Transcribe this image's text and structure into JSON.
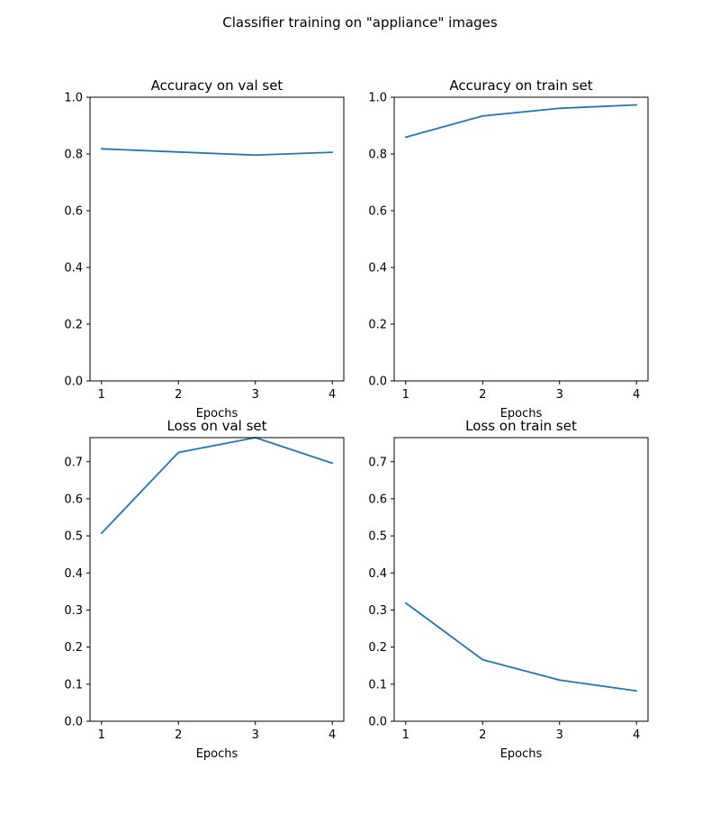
{
  "figure_title": "Classifier training on \"appliance\" images",
  "colors": {
    "line": "#1f77b4",
    "axes": "#000000",
    "background": "#ffffff"
  },
  "chart_data": [
    {
      "type": "line",
      "title": "Accuracy on val set",
      "xlabel": "Epochs",
      "ylabel": "",
      "x": [
        1,
        2,
        3,
        4
      ],
      "xticks": [
        1,
        2,
        3,
        4
      ],
      "xlim": [
        0.85,
        4.15
      ],
      "values": [
        0.818,
        0.807,
        0.796,
        0.806
      ],
      "ylim": [
        0,
        1.0
      ],
      "yticks": [
        "0.0",
        "0.2",
        "0.4",
        "0.6",
        "0.8",
        "1.0"
      ],
      "grid": false
    },
    {
      "type": "line",
      "title": "Accuracy on train set",
      "xlabel": "Epochs",
      "ylabel": "",
      "x": [
        1,
        2,
        3,
        4
      ],
      "xticks": [
        1,
        2,
        3,
        4
      ],
      "xlim": [
        0.85,
        4.15
      ],
      "values": [
        0.859,
        0.934,
        0.961,
        0.973
      ],
      "ylim": [
        0,
        1.0
      ],
      "yticks": [
        "0.0",
        "0.2",
        "0.4",
        "0.6",
        "0.8",
        "1.0"
      ],
      "grid": false
    },
    {
      "type": "line",
      "title": "Loss on val set",
      "xlabel": "Epochs",
      "ylabel": "",
      "x": [
        1,
        2,
        3,
        4
      ],
      "xticks": [
        1,
        2,
        3,
        4
      ],
      "xlim": [
        0.85,
        4.15
      ],
      "values": [
        0.507,
        0.725,
        0.765,
        0.696
      ],
      "ylim": [
        0,
        0.765
      ],
      "yticks": [
        "0.0",
        "0.1",
        "0.2",
        "0.3",
        "0.4",
        "0.5",
        "0.6",
        "0.7"
      ],
      "grid": false
    },
    {
      "type": "line",
      "title": "Loss on train set",
      "xlabel": "Epochs",
      "ylabel": "",
      "x": [
        1,
        2,
        3,
        4
      ],
      "xticks": [
        1,
        2,
        3,
        4
      ],
      "xlim": [
        0.85,
        4.15
      ],
      "values": [
        0.319,
        0.166,
        0.111,
        0.082
      ],
      "ylim": [
        0,
        0.765
      ],
      "yticks": [
        "0.0",
        "0.1",
        "0.2",
        "0.3",
        "0.4",
        "0.5",
        "0.6",
        "0.7"
      ],
      "grid": false
    }
  ]
}
